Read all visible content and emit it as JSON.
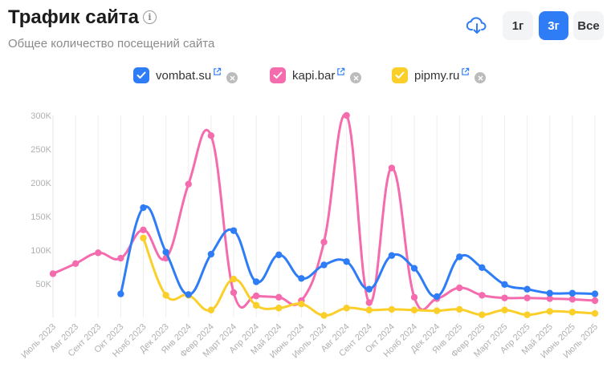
{
  "header": {
    "title": "Трафик сайта",
    "info_icon": "info-icon",
    "subtitle": "Общее количество посещений сайта",
    "download_icon": "cloud-download-icon",
    "periods": [
      "1г",
      "3г",
      "Все"
    ],
    "active_period": "3г"
  },
  "legend": [
    {
      "label": "vombat.su",
      "color": "#2e7cf6"
    },
    {
      "label": "kapi.bar",
      "color": "#f46cae"
    },
    {
      "label": "pipmy.ru",
      "color": "#fbcf2a"
    }
  ],
  "chart_data": {
    "type": "line",
    "title": "Трафик сайта",
    "xlabel": "",
    "ylabel": "",
    "ylim": [
      0,
      300000
    ],
    "yticks": [
      "50K",
      "100K",
      "150K",
      "200K",
      "250K",
      "300K"
    ],
    "ytick_values": [
      50000,
      100000,
      150000,
      200000,
      250000,
      300000
    ],
    "grid": "vertical",
    "legend_position": "top-center",
    "categories": [
      "Июль 2023",
      "Авг 2023",
      "Сент 2023",
      "Окт 2023",
      "Нояб 2023",
      "Дек 2023",
      "Янв 2024",
      "Февр 2024",
      "Март 2024",
      "Апр 2024",
      "Май 2024",
      "Июнь 2024",
      "Июль 2024",
      "Авг 2024",
      "Сент 2024",
      "Окт 2024",
      "Нояб 2024",
      "Дек 2024",
      "Янв 2025",
      "Февр 2025",
      "Март 2025",
      "Апр 2025",
      "Май 2025",
      "Июнь 2025",
      "Июль 2025"
    ],
    "series": [
      {
        "name": "vombat.su",
        "color": "#2e7cf6",
        "values": [
          null,
          null,
          null,
          35000,
          163000,
          97000,
          34000,
          94000,
          129000,
          53000,
          93000,
          58000,
          78000,
          83000,
          42000,
          92000,
          73000,
          31000,
          90000,
          74000,
          49000,
          42000,
          36000,
          36000,
          35000
        ]
      },
      {
        "name": "kapi.bar",
        "color": "#f46cae",
        "values": [
          65000,
          80000,
          96000,
          88000,
          130000,
          88000,
          198000,
          270000,
          37000,
          32000,
          30000,
          25000,
          112000,
          300000,
          22000,
          222000,
          30000,
          28000,
          44000,
          33000,
          29000,
          29000,
          28000,
          27000,
          25000
        ]
      },
      {
        "name": "pipmy.ru",
        "color": "#fbcf2a",
        "values": [
          null,
          null,
          null,
          null,
          118000,
          33000,
          33000,
          11000,
          57000,
          18000,
          14000,
          20000,
          3000,
          14000,
          11000,
          12000,
          11000,
          10000,
          12000,
          4000,
          11000,
          4000,
          9000,
          8000,
          6000
        ]
      }
    ]
  }
}
